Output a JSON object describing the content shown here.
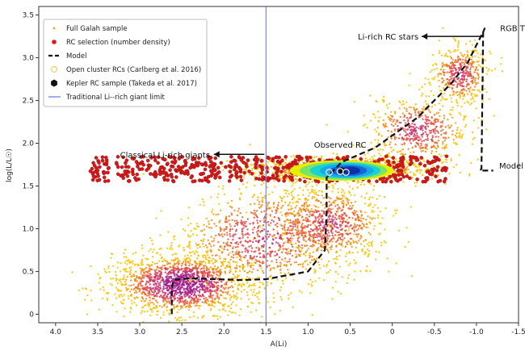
{
  "chart_data": {
    "type": "scatter",
    "title": "",
    "xlabel": "A(Li)",
    "ylabel": "log(L/L☉)",
    "xlim": [
      4.2,
      -1.5
    ],
    "ylim": [
      -0.1,
      3.6
    ],
    "x_ticks": [
      "4.0",
      "3.5",
      "3.0",
      "2.5",
      "2.0",
      "1.5",
      "1.0",
      "0.5",
      "0",
      "-0.5",
      "-1.0",
      "-1.5"
    ],
    "x_tick_values": [
      4.0,
      3.5,
      3.0,
      2.5,
      2.0,
      1.5,
      1.0,
      0.5,
      0,
      -0.5,
      -1.0,
      -1.5
    ],
    "y_ticks": [
      "0",
      "0.5",
      "1.0",
      "1.5",
      "2.0",
      "2.5",
      "3.0",
      "3.5"
    ],
    "y_tick_values": [
      0,
      0.5,
      1.0,
      1.5,
      2.0,
      2.5,
      3.0,
      3.5
    ],
    "grid": false,
    "legend": {
      "placement": "top-left",
      "entries": [
        {
          "label": "Full Galah sample",
          "marker": "small-dot",
          "color": "#f5b800"
        },
        {
          "label": "RC selection (number density)",
          "marker": "dot",
          "color": "#d61a1a"
        },
        {
          "label": "Model",
          "marker": "dashed-line",
          "color": "#111111"
        },
        {
          "label": "Open cluster RCs (Carlberg et al. 2016)",
          "marker": "open-circle",
          "color": "#f2d36b"
        },
        {
          "label": "Kepler RC sample (Takeda et al. 2017)",
          "marker": "hexagon",
          "color": "#111111"
        },
        {
          "label": "Traditional Li--rich giant limit",
          "marker": "line",
          "color": "#7f86e6"
        }
      ]
    },
    "li_rich_limit": 1.5,
    "model_track": {
      "x": [
        2.62,
        2.62,
        2.6,
        2.4,
        1.8,
        1.5,
        1.0,
        0.8,
        0.78,
        0.78,
        0.6,
        0.2,
        -0.3,
        -0.7,
        -0.9,
        -1.0,
        -1.08,
        -1.1,
        -1.08,
        -1.06,
        -1.04,
        -1.2
      ],
      "y": [
        0.0,
        0.3,
        0.4,
        0.42,
        0.4,
        0.41,
        0.5,
        0.75,
        1.2,
        1.6,
        1.78,
        1.95,
        2.3,
        2.7,
        2.95,
        3.15,
        3.3,
        3.35,
        3.3,
        1.7,
        1.68,
        1.68
      ]
    },
    "full_sample_clumps": [
      {
        "x": 2.5,
        "y": 0.35,
        "sx": 0.75,
        "sy": 0.32,
        "weight": 0.3
      },
      {
        "x": 1.5,
        "y": 0.9,
        "sx": 0.95,
        "sy": 0.55,
        "weight": 0.18
      },
      {
        "x": 0.75,
        "y": 1.05,
        "sx": 0.6,
        "sy": 0.42,
        "weight": 0.14
      },
      {
        "x": 0.6,
        "y": 1.7,
        "sx": 1.0,
        "sy": 0.12,
        "weight": 0.2
      },
      {
        "x": -0.3,
        "y": 2.15,
        "sx": 0.55,
        "sy": 0.35,
        "weight": 0.1
      },
      {
        "x": -0.8,
        "y": 2.8,
        "sx": 0.3,
        "sy": 0.3,
        "weight": 0.08
      }
    ],
    "rc_selection": {
      "x_range": [
        3.6,
        -0.65
      ],
      "y_range": [
        1.55,
        1.85
      ],
      "density_peak": {
        "x": 0.6,
        "y": 1.68
      }
    },
    "open_cluster_rcs": {
      "x": [
        0.75,
        0.62,
        0.55
      ],
      "y": [
        1.66,
        1.67,
        1.66
      ]
    },
    "kepler_rc": {
      "x": [
        0.6
      ],
      "y": [
        1.68
      ]
    },
    "annotations": [
      {
        "text": "Li-rich RC stars",
        "x": -0.35,
        "y": 3.25
      },
      {
        "text": "RGB Tip",
        "x": -1.28,
        "y": 3.35
      },
      {
        "text": "Observed RC",
        "x": 0.62,
        "y": 1.95
      },
      {
        "text": "Classical Li-rich giants",
        "x": 2.7,
        "y": 1.87
      },
      {
        "text": "Model RC",
        "x": -1.27,
        "y": 1.74
      }
    ]
  }
}
